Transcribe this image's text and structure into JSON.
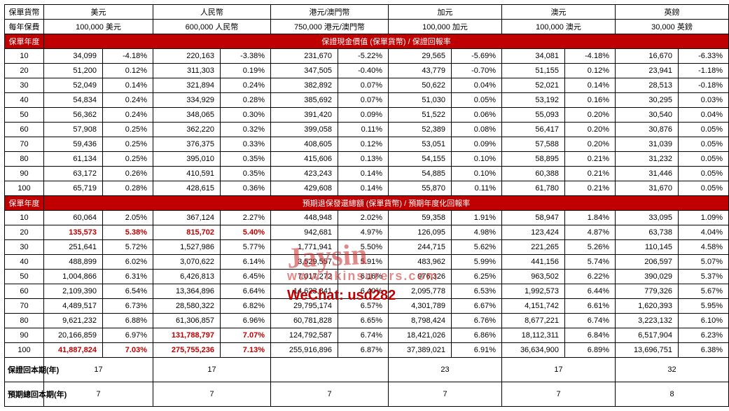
{
  "header": {
    "left_labels": [
      "保單貨幣",
      "每年保費"
    ],
    "currencies": [
      {
        "name": "美元",
        "premium": "100,000 美元"
      },
      {
        "name": "人民幣",
        "premium": "600,000 人民幣"
      },
      {
        "name": "港元/澳門幣",
        "premium": "750,000 港元/澳門幣"
      },
      {
        "name": "加元",
        "premium": "100,000 加元"
      },
      {
        "name": "澳元",
        "premium": "100,000 澳元"
      },
      {
        "name": "英鎊",
        "premium": "30,000 英鎊"
      }
    ]
  },
  "sections": [
    {
      "row_label": "保單年度",
      "title": "保證現金價值 (保單貨幣) / 保證回報率",
      "rows": [
        {
          "year": "10",
          "cells": [
            "34,099",
            "-4.18%",
            "220,163",
            "-3.38%",
            "231,670",
            "-5.22%",
            "29,565",
            "-5.69%",
            "34,081",
            "-4.18%",
            "16,670",
            "-6.33%"
          ]
        },
        {
          "year": "20",
          "cells": [
            "51,200",
            "0.12%",
            "311,303",
            "0.19%",
            "347,505",
            "-0.40%",
            "43,779",
            "-0.70%",
            "51,155",
            "0.12%",
            "23,941",
            "-1.18%"
          ]
        },
        {
          "year": "30",
          "cells": [
            "52,049",
            "0.14%",
            "321,894",
            "0.24%",
            "382,892",
            "0.07%",
            "50,622",
            "0.04%",
            "52,021",
            "0.14%",
            "28,513",
            "-0.18%"
          ]
        },
        {
          "year": "40",
          "cells": [
            "54,834",
            "0.24%",
            "334,929",
            "0.28%",
            "385,692",
            "0.07%",
            "51,030",
            "0.05%",
            "53,192",
            "0.16%",
            "30,295",
            "0.03%"
          ]
        },
        {
          "year": "50",
          "cells": [
            "56,362",
            "0.24%",
            "348,065",
            "0.30%",
            "391,420",
            "0.09%",
            "51,522",
            "0.06%",
            "55,093",
            "0.20%",
            "30,540",
            "0.04%"
          ]
        },
        {
          "year": "60",
          "cells": [
            "57,908",
            "0.25%",
            "362,220",
            "0.32%",
            "399,058",
            "0.11%",
            "52,389",
            "0.08%",
            "56,417",
            "0.20%",
            "30,876",
            "0.05%"
          ]
        },
        {
          "year": "70",
          "cells": [
            "59,436",
            "0.25%",
            "376,375",
            "0.33%",
            "408,605",
            "0.12%",
            "53,051",
            "0.09%",
            "57,588",
            "0.20%",
            "31,039",
            "0.05%"
          ]
        },
        {
          "year": "80",
          "cells": [
            "61,134",
            "0.25%",
            "395,010",
            "0.35%",
            "415,606",
            "0.13%",
            "54,155",
            "0.10%",
            "58,895",
            "0.21%",
            "31,232",
            "0.05%"
          ]
        },
        {
          "year": "90",
          "cells": [
            "63,172",
            "0.26%",
            "410,591",
            "0.35%",
            "423,243",
            "0.14%",
            "54,885",
            "0.10%",
            "60,388",
            "0.21%",
            "31,446",
            "0.05%"
          ]
        },
        {
          "year": "100",
          "cells": [
            "65,719",
            "0.28%",
            "428,615",
            "0.36%",
            "429,608",
            "0.14%",
            "55,870",
            "0.11%",
            "61,780",
            "0.21%",
            "31,670",
            "0.05%"
          ]
        }
      ]
    },
    {
      "row_label": "保單年度",
      "title": "預期退保發還總額 (保單貨幣) / 預期年度化回報率",
      "rows": [
        {
          "year": "10",
          "cells": [
            "60,064",
            "2.05%",
            "367,124",
            "2.27%",
            "448,948",
            "2.02%",
            "59,358",
            "1.91%",
            "58,947",
            "1.84%",
            "33,095",
            "1.09%"
          ]
        },
        {
          "year": "20",
          "cells": [
            "135,573",
            "5.38%",
            "815,702",
            "5.40%",
            "942,681",
            "4.97%",
            "126,095",
            "4.98%",
            "123,424",
            "4.87%",
            "63,738",
            "4.04%"
          ],
          "red": [
            0,
            1,
            2,
            3
          ]
        },
        {
          "year": "30",
          "cells": [
            "251,641",
            "5.72%",
            "1,527,986",
            "5.77%",
            "1,771,941",
            "5.50%",
            "244,715",
            "5.62%",
            "221,265",
            "5.26%",
            "110,145",
            "4.58%"
          ]
        },
        {
          "year": "40",
          "cells": [
            "488,899",
            "6.02%",
            "3,070,622",
            "6.14%",
            "3,529,557",
            "5.91%",
            "483,962",
            "5.99%",
            "441,156",
            "5.74%",
            "206,597",
            "5.07%"
          ]
        },
        {
          "year": "50",
          "cells": [
            "1,004,866",
            "6.31%",
            "6,426,813",
            "6.45%",
            "7,017,272",
            "6.16%",
            "976,326",
            "6.25%",
            "963,502",
            "6.22%",
            "390,029",
            "5.37%"
          ]
        },
        {
          "year": "60",
          "cells": [
            "2,109,390",
            "6.54%",
            "13,364,896",
            "6.64%",
            "14,623,841",
            "6.40%",
            "2,095,778",
            "6.53%",
            "1,992,573",
            "6.44%",
            "779,326",
            "5.67%"
          ]
        },
        {
          "year": "70",
          "cells": [
            "4,489,517",
            "6.73%",
            "28,580,322",
            "6.82%",
            "29,795,174",
            "6.57%",
            "4,301,789",
            "6.67%",
            "4,151,742",
            "6.61%",
            "1,620,393",
            "5.95%"
          ]
        },
        {
          "year": "80",
          "cells": [
            "9,621,232",
            "6.88%",
            "61,306,857",
            "6.96%",
            "60,781,828",
            "6.65%",
            "8,798,424",
            "6.76%",
            "8,677,221",
            "6.74%",
            "3,223,132",
            "6.10%"
          ]
        },
        {
          "year": "90",
          "cells": [
            "20,166,859",
            "6.97%",
            "131,788,797",
            "7.07%",
            "124,792,587",
            "6.74%",
            "18,421,026",
            "6.86%",
            "18,112,311",
            "6.84%",
            "6,517,904",
            "6.23%"
          ],
          "red": [
            2,
            3
          ]
        },
        {
          "year": "100",
          "cells": [
            "41,887,824",
            "7.03%",
            "275,755,236",
            "7.13%",
            "255,916,896",
            "6.87%",
            "37,389,021",
            "6.91%",
            "36,634,900",
            "6.89%",
            "13,696,751",
            "6.38%"
          ],
          "red": [
            0,
            1,
            2,
            3
          ]
        }
      ]
    }
  ],
  "footer": [
    {
      "label": "保證回本期(年)",
      "values": [
        "17",
        "17",
        "",
        "23",
        "17",
        "32"
      ]
    },
    {
      "label": "預期總回本期(年)",
      "values": [
        "7",
        "7",
        "7",
        "7",
        "7",
        "8"
      ]
    }
  ],
  "watermark": {
    "name": "Jaysin",
    "url": "www.hkinsurers.com",
    "wechat_label": "WeChat:",
    "wechat_id": "usd282"
  },
  "style": {
    "section_color": "#c00000",
    "highlight_color": "#c00000"
  }
}
